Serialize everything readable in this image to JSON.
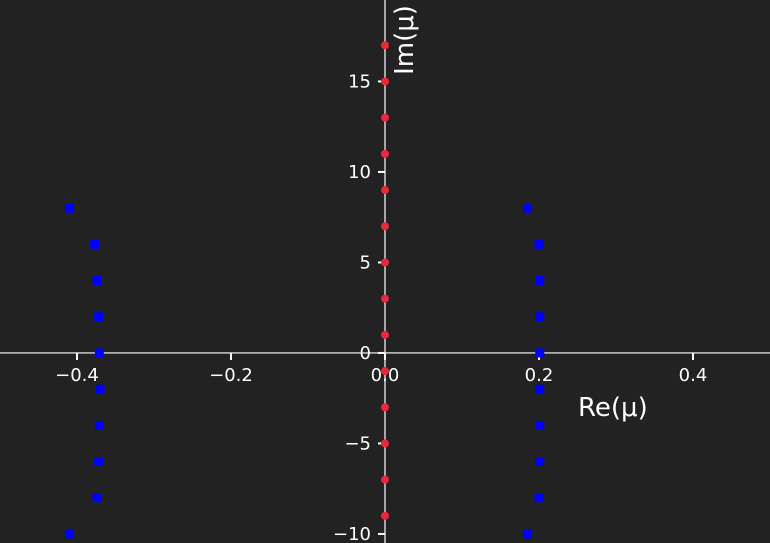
{
  "chart_data": {
    "type": "scatter",
    "title": "",
    "xlabel": "Re(μ)",
    "ylabel": "Im(μ)",
    "xlim": [
      -0.5,
      0.5
    ],
    "ylim": [
      -10.5,
      19.5
    ],
    "grid": false,
    "legend": "none",
    "background": "#222222",
    "axis_color": "#ffffff",
    "x_ticks": [
      {
        "value": -0.4,
        "label": "−0.4"
      },
      {
        "value": -0.2,
        "label": "−0.2"
      },
      {
        "value": 0.0,
        "label": "0.0"
      },
      {
        "value": 0.2,
        "label": "0.2"
      },
      {
        "value": 0.4,
        "label": "0.4"
      }
    ],
    "y_ticks": [
      {
        "value": -10,
        "label": "−10"
      },
      {
        "value": -5,
        "label": "−5"
      },
      {
        "value": 0,
        "label": "0"
      },
      {
        "value": 5,
        "label": "5"
      },
      {
        "value": 10,
        "label": "10"
      },
      {
        "value": 15,
        "label": "15"
      }
    ],
    "series": [
      {
        "marker": "square",
        "color": "#0000ff",
        "points": [
          [
            -0.41,
            8
          ],
          [
            -0.377,
            6
          ],
          [
            -0.374,
            4
          ],
          [
            -0.372,
            2
          ],
          [
            -0.371,
            0
          ],
          [
            -0.37,
            -2
          ],
          [
            -0.371,
            -4
          ],
          [
            -0.372,
            -6
          ],
          [
            -0.374,
            -8
          ],
          [
            -0.41,
            -10
          ],
          [
            0.185,
            8
          ],
          [
            0.2,
            6
          ],
          [
            0.201,
            4
          ],
          [
            0.201,
            2
          ],
          [
            0.201,
            0
          ],
          [
            0.201,
            -2
          ],
          [
            0.201,
            -4
          ],
          [
            0.201,
            -6
          ],
          [
            0.2,
            -8
          ],
          [
            0.185,
            -10
          ]
        ]
      },
      {
        "marker": "circle",
        "color": "#e8283c",
        "points": [
          [
            0,
            17
          ],
          [
            0,
            15
          ],
          [
            0,
            13
          ],
          [
            0,
            11
          ],
          [
            0,
            9
          ],
          [
            0,
            7
          ],
          [
            0,
            5
          ],
          [
            0,
            3
          ],
          [
            0,
            1
          ],
          [
            0,
            -1
          ],
          [
            0,
            -3
          ],
          [
            0,
            -5
          ],
          [
            0,
            -7
          ],
          [
            0,
            -9
          ]
        ]
      }
    ]
  }
}
